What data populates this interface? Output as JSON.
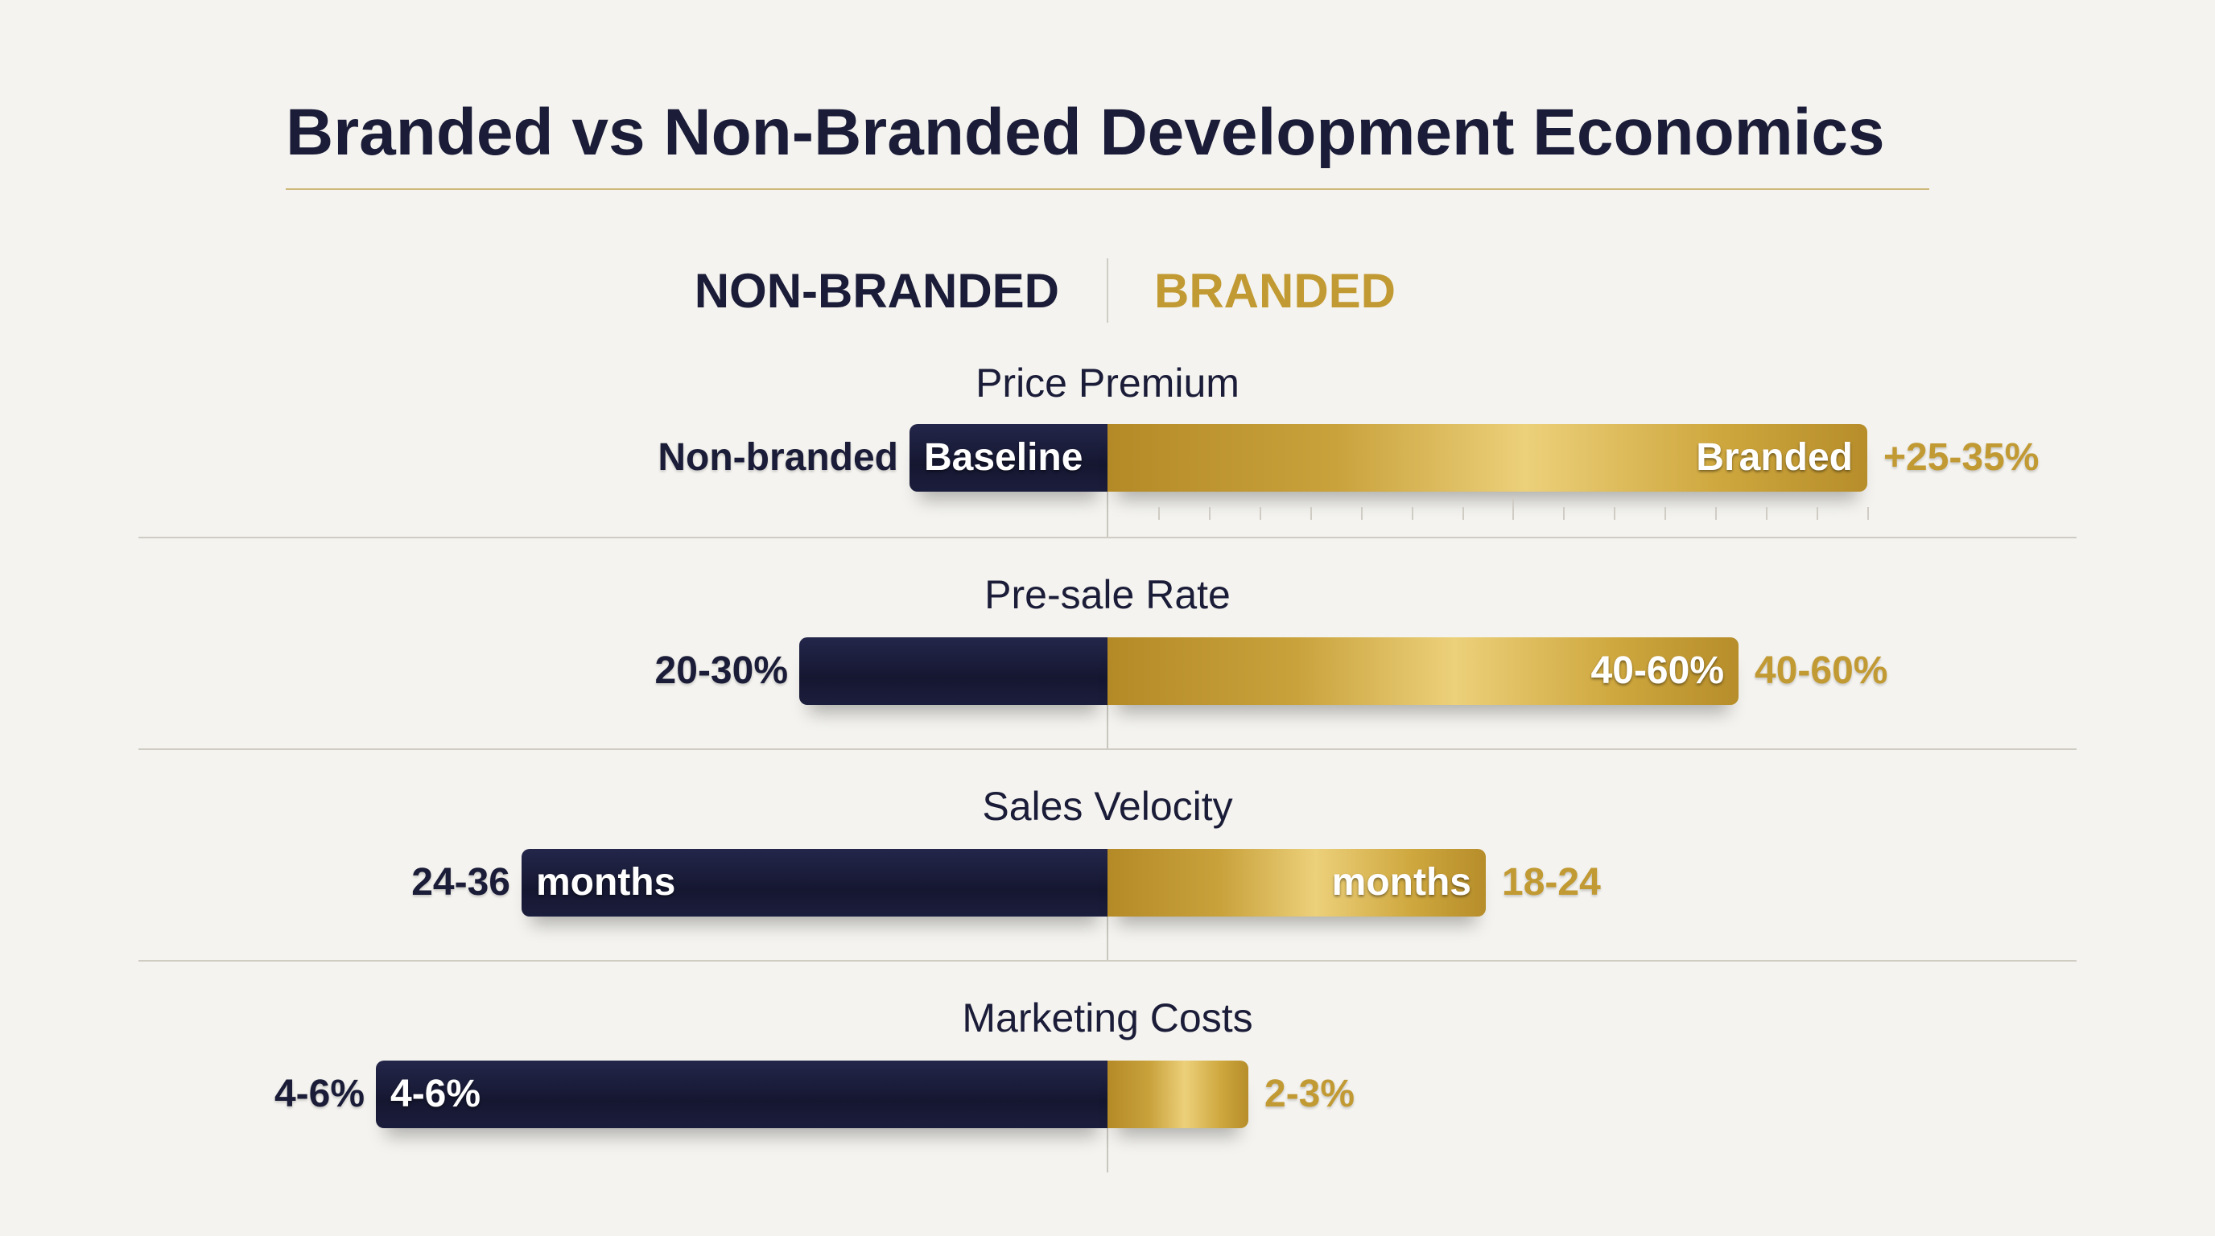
{
  "title": "Branded vs Non-Branded Development Economics",
  "legend": {
    "non_branded": "NON-BRANDED",
    "branded": "BRANDED"
  },
  "colors": {
    "non_branded": "#171933",
    "branded": "#c29a33",
    "background": "#f4f3ef"
  },
  "chart_data": {
    "type": "bar",
    "orientation": "diverging-horizontal",
    "title": "Branded vs Non-Branded Development Economics",
    "legend_placement": "top",
    "categories": [
      "Price Premium",
      "Pre-sale Rate",
      "Sales Velocity",
      "Marketing Costs"
    ],
    "series": [
      {
        "name": "NON-BRANDED",
        "values": [
          "Baseline",
          "20-30%",
          "24-36 months",
          "4-6%"
        ]
      },
      {
        "name": "BRANDED",
        "values": [
          "+25-35%",
          "40-60%",
          "18-24 months",
          "2-3%"
        ]
      }
    ],
    "rows": [
      {
        "label": "Price Premium",
        "nb_outer": "Non-branded",
        "nb_inner": "Baseline",
        "b_inner": "Branded",
        "b_outer": "+25-35%"
      },
      {
        "label": "Pre-sale Rate",
        "nb_outer": "20-30%",
        "nb_inner": "",
        "b_inner": "40-60%",
        "b_outer": "40-60%"
      },
      {
        "label": "Sales Velocity",
        "nb_outer": "24-36",
        "nb_inner": "months",
        "b_inner": "months",
        "b_outer": "18-24"
      },
      {
        "label": "Marketing Costs",
        "nb_outer": "4-6%",
        "nb_inner": "4-6%",
        "b_inner": "",
        "b_outer": "2-3%"
      }
    ]
  }
}
